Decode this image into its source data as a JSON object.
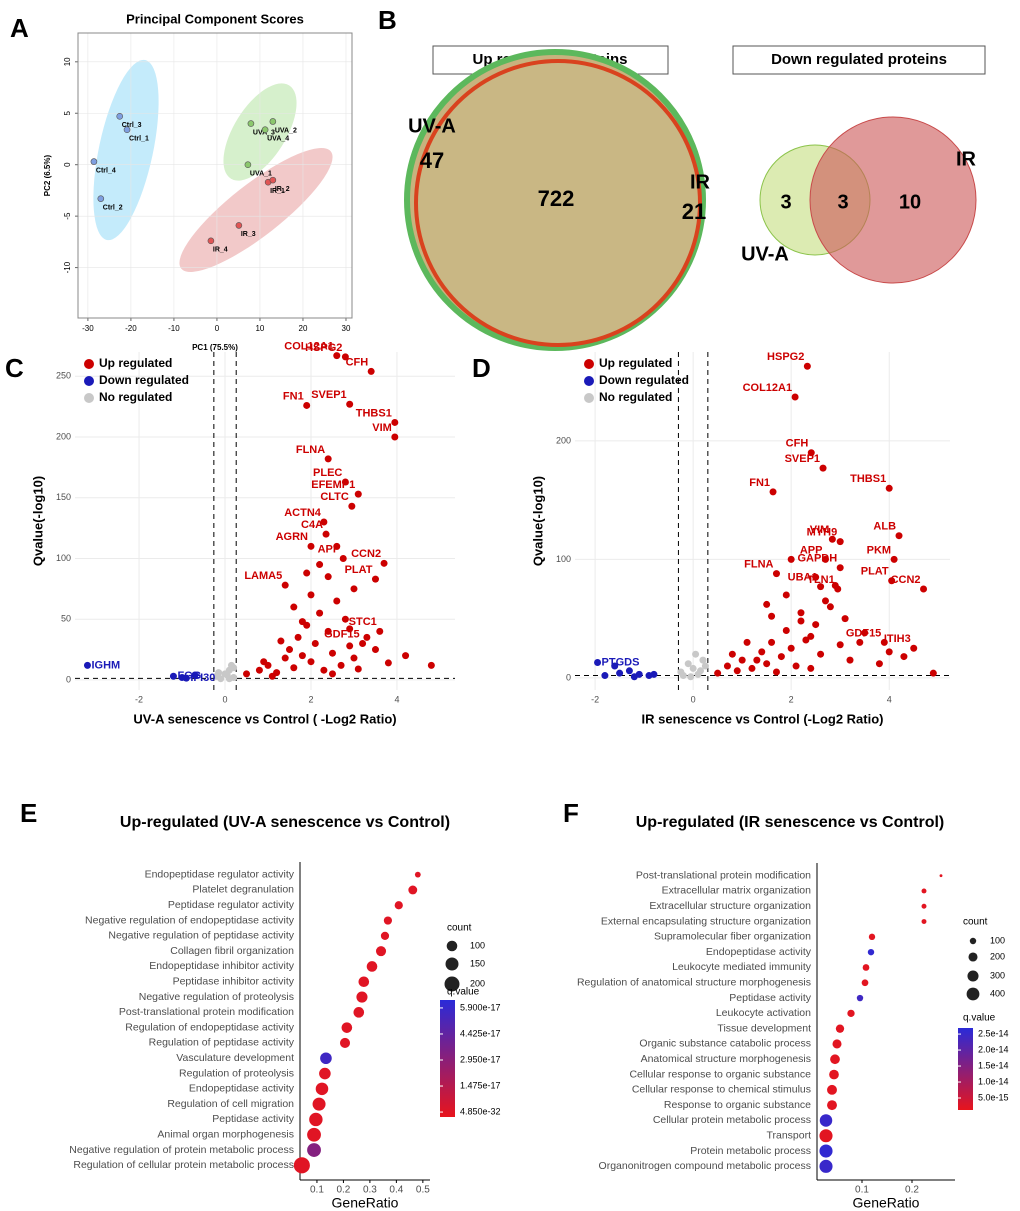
{
  "chart_data": [
    {
      "type": "scatter",
      "panel": "A",
      "title": "Principal Component Scores",
      "xlabel": "PC1 (75.5%)",
      "ylabel": "PC2 (6.5%)",
      "xlim": [
        -32.3,
        31.4
      ],
      "ylim": [
        -14.9,
        12.8
      ],
      "xticks": [
        -30,
        -20,
        -10,
        0,
        10,
        20,
        30
      ],
      "yticks": [
        -10,
        -5,
        0,
        5,
        10
      ],
      "grid": true,
      "series": [
        {
          "color": "#7f9fe0",
          "x": [
            -22.6,
            -20.9,
            -28.6,
            -27
          ],
          "values": [
            4.7,
            3.4,
            0.3,
            -3.3
          ],
          "labels": [
            "Ctrl_3",
            "Ctrl_1",
            "Ctrl_4",
            "Ctrl_2"
          ]
        },
        {
          "color": "#8cc86e",
          "x": [
            7.9,
            13,
            11.2,
            7.2
          ],
          "values": [
            4.0,
            4.2,
            3.4,
            0
          ],
          "labels": [
            "UVA_3",
            "UVA_2",
            "UVA_4",
            "UVA_1"
          ]
        },
        {
          "color": "#e05555",
          "x": [
            11.9,
            13,
            5.1,
            -1.4
          ],
          "values": [
            -1.7,
            -1.5,
            -5.9,
            -7.4
          ],
          "labels": [
            "IR_1",
            "IR_2",
            "IR_3",
            "IR_4"
          ]
        }
      ]
    },
    {
      "type": "venn",
      "panel": "B",
      "diagrams": [
        {
          "title": "Up regulated proteins",
          "overlap": 722,
          "sets": [
            {
              "name": "UV-A",
              "count": 47,
              "color": "#5cb85c"
            },
            {
              "name": "IR",
              "count": 21,
              "color": "#d9421e"
            }
          ]
        },
        {
          "title": "Down regulated proteins",
          "overlap": 3,
          "sets": [
            {
              "name": "UV-A",
              "count": 3,
              "color": "#8bc34a"
            },
            {
              "name": "IR",
              "count": 10,
              "color": "#c84a4a"
            }
          ]
        }
      ]
    },
    {
      "type": "volcano",
      "panel": "C",
      "xlabel": "UV-A senescence vs Control ( -Log2 Ratio)",
      "ylabel": "Qvalue(-log10)",
      "xlim": [
        -3.49,
        5.35
      ],
      "ylim": [
        -8.3,
        270
      ],
      "xticks": [
        -2,
        0,
        2,
        4
      ],
      "yticks": [
        0,
        50,
        100,
        150,
        200,
        250
      ],
      "grid": true,
      "thresholds": {
        "x": [
          -0.26,
          0.26
        ],
        "y": 1.3
      },
      "series": [
        {
          "name": "Up regulated",
          "color": "#cc0000",
          "x": [
            2.6,
            2.8,
            3.4,
            2.9,
            1.9,
            3.95,
            3.95,
            2.4,
            2.8,
            3.1,
            2.95,
            2.3,
            2.35,
            2.0,
            2.75,
            3.7,
            3.5,
            1.4,
            3.6,
            3.2,
            0.5,
            0.8,
            1.0,
            1.2,
            1.4,
            1.5,
            1.6,
            1.7,
            1.8,
            1.9,
            2.0,
            2.1,
            2.2,
            2.3,
            2.4,
            2.5,
            2.6,
            2.7,
            2.8,
            2.9,
            3.0,
            3.1,
            3.3,
            3.5,
            3.8,
            4.2,
            4.8,
            1.1,
            1.6,
            2.0,
            2.4,
            2.2,
            1.8,
            2.6,
            3.0,
            1.3,
            0.9,
            2.5,
            2.9,
            1.9
          ],
          "values": [
            267,
            266,
            254,
            227,
            226,
            212,
            200,
            182,
            163,
            153,
            143,
            130,
            120,
            110,
            100,
            96,
            83,
            78,
            40,
            30,
            5,
            8,
            12,
            6,
            18,
            25,
            10,
            35,
            20,
            45,
            15,
            30,
            55,
            8,
            40,
            22,
            65,
            12,
            50,
            28,
            18,
            9,
            35,
            25,
            14,
            20,
            12,
            3,
            60,
            70,
            85,
            95,
            48,
            110,
            75,
            32,
            15,
            5,
            42,
            88
          ],
          "labels": [
            "COL12A1",
            "HSPG2",
            "CFH",
            "SVEP1",
            "FN1",
            "THBS1",
            "VIM",
            "FLNA",
            "PLEC",
            "EFEMP1",
            "CLTC",
            "ACTN4",
            "C4A",
            "AGRN",
            "APP",
            "CCN2",
            "PLAT",
            "LAMA5",
            "STC1",
            "GDF15",
            null,
            null,
            null,
            null,
            null,
            null,
            null,
            null,
            null,
            null,
            null,
            null,
            null,
            null,
            null,
            null,
            null,
            null,
            null,
            null,
            null,
            null,
            null,
            null,
            null,
            null,
            null,
            null,
            null,
            null,
            null,
            null,
            null,
            null,
            null,
            null,
            null,
            null,
            null,
            null
          ]
        },
        {
          "name": "Down regulated",
          "color": "#1a1ab8",
          "x": [
            -3.2,
            -1.2,
            -0.9,
            -1.0,
            -0.7
          ],
          "values": [
            12,
            3,
            1.5,
            2,
            4
          ],
          "labels": [
            "IGHM",
            "FGG",
            "IFI30",
            null,
            null
          ]
        },
        {
          "name": "No regulated",
          "color": "#c8c8c8",
          "x": [
            -0.2,
            0.0,
            0.1,
            0.2,
            -0.1,
            0.15,
            0.05,
            -0.15,
            0.2,
            0.1
          ],
          "values": [
            3,
            5,
            8,
            2,
            1,
            12,
            4,
            6,
            10,
            1
          ],
          "labels": [
            null,
            null,
            null,
            null,
            null,
            null,
            null,
            null,
            null,
            null
          ]
        }
      ]
    },
    {
      "type": "volcano",
      "panel": "D",
      "xlabel": "IR senescence vs Control (-Log2 Ratio)",
      "ylabel": "Qvalue(-log10)",
      "xlim": [
        -2.41,
        5.24
      ],
      "ylim": [
        -10.2,
        275
      ],
      "xticks": [
        -2,
        0,
        2,
        4
      ],
      "yticks": [
        0,
        100,
        200
      ],
      "grid": true,
      "thresholds": {
        "x": [
          -0.3,
          0.3
        ],
        "y": 2
      },
      "series": [
        {
          "name": "Up regulated",
          "color": "#cc0000",
          "x": [
            2.33,
            2.08,
            2.41,
            2.65,
            1.63,
            4.0,
            2.84,
            3.0,
            4.2,
            4.1,
            2.7,
            3.0,
            1.7,
            2.95,
            4.05,
            4.7,
            2.6,
            3.9,
            4.5,
            0.5,
            0.7,
            0.9,
            1.0,
            1.2,
            1.4,
            1.5,
            1.6,
            1.8,
            1.9,
            2.0,
            2.1,
            2.2,
            2.3,
            2.4,
            2.5,
            2.6,
            2.8,
            3.0,
            3.2,
            3.5,
            3.8,
            4.0,
            4.3,
            4.9,
            1.1,
            1.5,
            1.9,
            2.2,
            2.5,
            2.7,
            3.1,
            1.7,
            2.0,
            2.4,
            0.8,
            1.3,
            2.9,
            3.4,
            1.6
          ],
          "values": [
            263,
            237,
            190,
            177,
            157,
            160,
            117,
            115,
            120,
            100,
            100,
            93,
            88,
            75,
            82,
            75,
            77,
            30,
            25,
            4,
            10,
            6,
            15,
            8,
            22,
            12,
            30,
            18,
            40,
            25,
            10,
            55,
            32,
            8,
            45,
            20,
            60,
            28,
            15,
            38,
            12,
            22,
            18,
            4,
            30,
            62,
            70,
            48,
            85,
            65,
            50,
            5,
            100,
            35,
            20,
            15,
            78,
            30,
            52
          ],
          "labels": [
            "HSPG2",
            "COL12A1",
            "CFH",
            "SVEP1",
            "FN1",
            "THBS1",
            "VIM",
            "MYH9",
            "ALB",
            "PKM",
            "APP",
            "GAPDH",
            "FLNA",
            "TLN1",
            "PLAT",
            "CCN2",
            "UBA1",
            "GDF15",
            "ITIH3",
            null,
            null,
            null,
            null,
            null,
            null,
            null,
            null,
            null,
            null,
            null,
            null,
            null,
            null,
            null,
            null,
            null,
            null,
            null,
            null,
            null,
            null,
            null,
            null,
            null,
            null,
            null,
            null,
            null,
            null,
            null,
            null,
            null,
            null,
            null,
            null,
            null,
            null,
            null,
            null
          ]
        },
        {
          "name": "Down regulated",
          "color": "#1a1ab8",
          "x": [
            -1.95,
            -1.6,
            -1.5,
            -1.3,
            -1.1,
            -0.9,
            -0.8,
            -1.8,
            -1.2
          ],
          "values": [
            13,
            10,
            4,
            6,
            3,
            2,
            3,
            2,
            1
          ],
          "labels": [
            "PTGDS",
            null,
            null,
            null,
            null,
            null,
            null,
            null,
            null
          ]
        },
        {
          "name": "No regulated",
          "color": "#c8c8c8",
          "x": [
            -0.25,
            -0.1,
            0.0,
            0.1,
            0.2,
            -0.2,
            0.05,
            0.15,
            0.25,
            -0.05
          ],
          "values": [
            5,
            12,
            8,
            3,
            15,
            2,
            20,
            6,
            10,
            1
          ],
          "labels": [
            null,
            null,
            null,
            null,
            null,
            null,
            null,
            null,
            null,
            null
          ]
        }
      ]
    },
    {
      "type": "dot",
      "panel": "E",
      "title": "Up-regulated (UV-A senescence vs Control)",
      "xlabel": "GeneRatio",
      "xlim": [
        0.036,
        0.527
      ],
      "xticks": [
        0.1,
        0.2,
        0.3,
        0.4,
        0.5
      ],
      "categories": [
        "Endopeptidase regulator activity",
        "Platelet degranulation",
        "Peptidase regulator activity",
        "Negative regulation of endopeptidase activity",
        "Negative regulation of peptidase activity",
        "Collagen fibril organization",
        "Endopeptidase inhibitor activity",
        "Peptidase inhibitor activity",
        "Negative regulation of proteolysis",
        "Post-translational protein modification",
        "Regulation of endopeptidase activity",
        "Regulation of peptidase activity",
        "Vasculature development",
        "Regulation of proteolysis",
        "Endopeptidase activity",
        "Regulation of cell migration",
        "Peptidase activity",
        "Animal organ morphogenesis",
        "Negative regulation of protein metabolic process",
        "Regulation of cellular protein metabolic process"
      ],
      "values": [
        0.481,
        0.462,
        0.409,
        0.368,
        0.357,
        0.342,
        0.308,
        0.277,
        0.27,
        0.258,
        0.213,
        0.206,
        0.134,
        0.13,
        0.119,
        0.108,
        0.096,
        0.089,
        0.089,
        0.043
      ],
      "counts": [
        30,
        70,
        60,
        60,
        60,
        90,
        100,
        100,
        110,
        100,
        100,
        90,
        120,
        120,
        140,
        150,
        160,
        170,
        170,
        230
      ],
      "q_values": [
        1e-20,
        1e-22,
        1e-21,
        1e-22,
        1e-22,
        2e-24,
        1e-22,
        1e-22,
        1e-21,
        1e-22,
        1e-21,
        1e-21,
        5.6e-17,
        1e-20,
        1e-21,
        1e-22,
        1e-22,
        1e-21,
        3.2e-17,
        4.85e-32
      ],
      "size_legend": {
        "title": "count",
        "values": [
          100,
          150,
          200
        ]
      },
      "color_legend": {
        "title": "q.value",
        "lim": [
          -2.8e-18,
          6.35e-17
        ],
        "colors": [
          "#e8141c",
          "#2a2ad8"
        ],
        "ticks": [
          {
            "value": 5.9e-17,
            "label": "5.900e-17"
          },
          {
            "value": 4.425e-17,
            "label": "4.425e-17"
          },
          {
            "value": 2.95e-17,
            "label": "2.950e-17"
          },
          {
            "value": 1.475e-17,
            "label": "1.475e-17"
          },
          {
            "value": 4.85e-32,
            "label": "4.850e-32"
          }
        ]
      }
    },
    {
      "type": "dot",
      "panel": "F",
      "title": "Up-regulated (IR senescence vs Control)",
      "xlabel": "GeneRatio",
      "xlim": [
        0.01,
        0.286
      ],
      "xticks": [
        0.1,
        0.2
      ],
      "categories": [
        "Post-translational protein modification",
        "Extracellular matrix organization",
        "Extracellular structure organization",
        "External encapsulating structure organization",
        "Supramolecular fiber organization",
        "Endopeptidase activity",
        "Leukocyte mediated immunity",
        "Regulation of anatomical structure morphogenesis",
        "Peptidase activity",
        "Leukocyte activation",
        "Tissue development",
        "Organic substance catabolic process",
        "Anatomical structure morphogenesis",
        "Cellular response to organic substance",
        "Cellular response to chemical stimulus",
        "Response to organic substance",
        "Cellular protein metabolic process",
        "Transport",
        "Protein metabolic process",
        "Organonitrogen compound metabolic process"
      ],
      "values": [
        0.258,
        0.224,
        0.224,
        0.224,
        0.12,
        0.118,
        0.108,
        0.106,
        0.096,
        0.078,
        0.056,
        0.05,
        0.046,
        0.044,
        0.04,
        0.04,
        0.028,
        0.028,
        0.028,
        0.028
      ],
      "counts": [
        20,
        60,
        60,
        60,
        100,
        100,
        110,
        110,
        100,
        130,
        170,
        200,
        230,
        230,
        240,
        240,
        380,
        420,
        420,
        420
      ],
      "q_values": [
        2e-15,
        2e-15,
        2e-15,
        2e-15,
        2e-15,
        2.6e-14,
        2e-15,
        2e-15,
        2.4e-14,
        2e-15,
        2e-15,
        2e-15,
        2e-15,
        2e-15,
        2e-15,
        2e-15,
        2.5e-14,
        2e-15,
        2.6e-14,
        2.5e-14
      ],
      "size_legend": {
        "title": "count",
        "values": [
          100,
          200,
          300,
          400
        ]
      },
      "color_legend": {
        "title": "q.value",
        "lim": [
          1.25e-15,
          2.69e-14
        ],
        "colors": [
          "#e8141c",
          "#2a2ad8"
        ],
        "ticks": [
          {
            "value": 2.5e-14,
            "label": "2.5e-14"
          },
          {
            "value": 2e-14,
            "label": "2.0e-14"
          },
          {
            "value": 1.5e-14,
            "label": "1.5e-14"
          },
          {
            "value": 1e-14,
            "label": "1.0e-14"
          },
          {
            "value": 5e-15,
            "label": "5.0e-15"
          }
        ]
      }
    }
  ]
}
